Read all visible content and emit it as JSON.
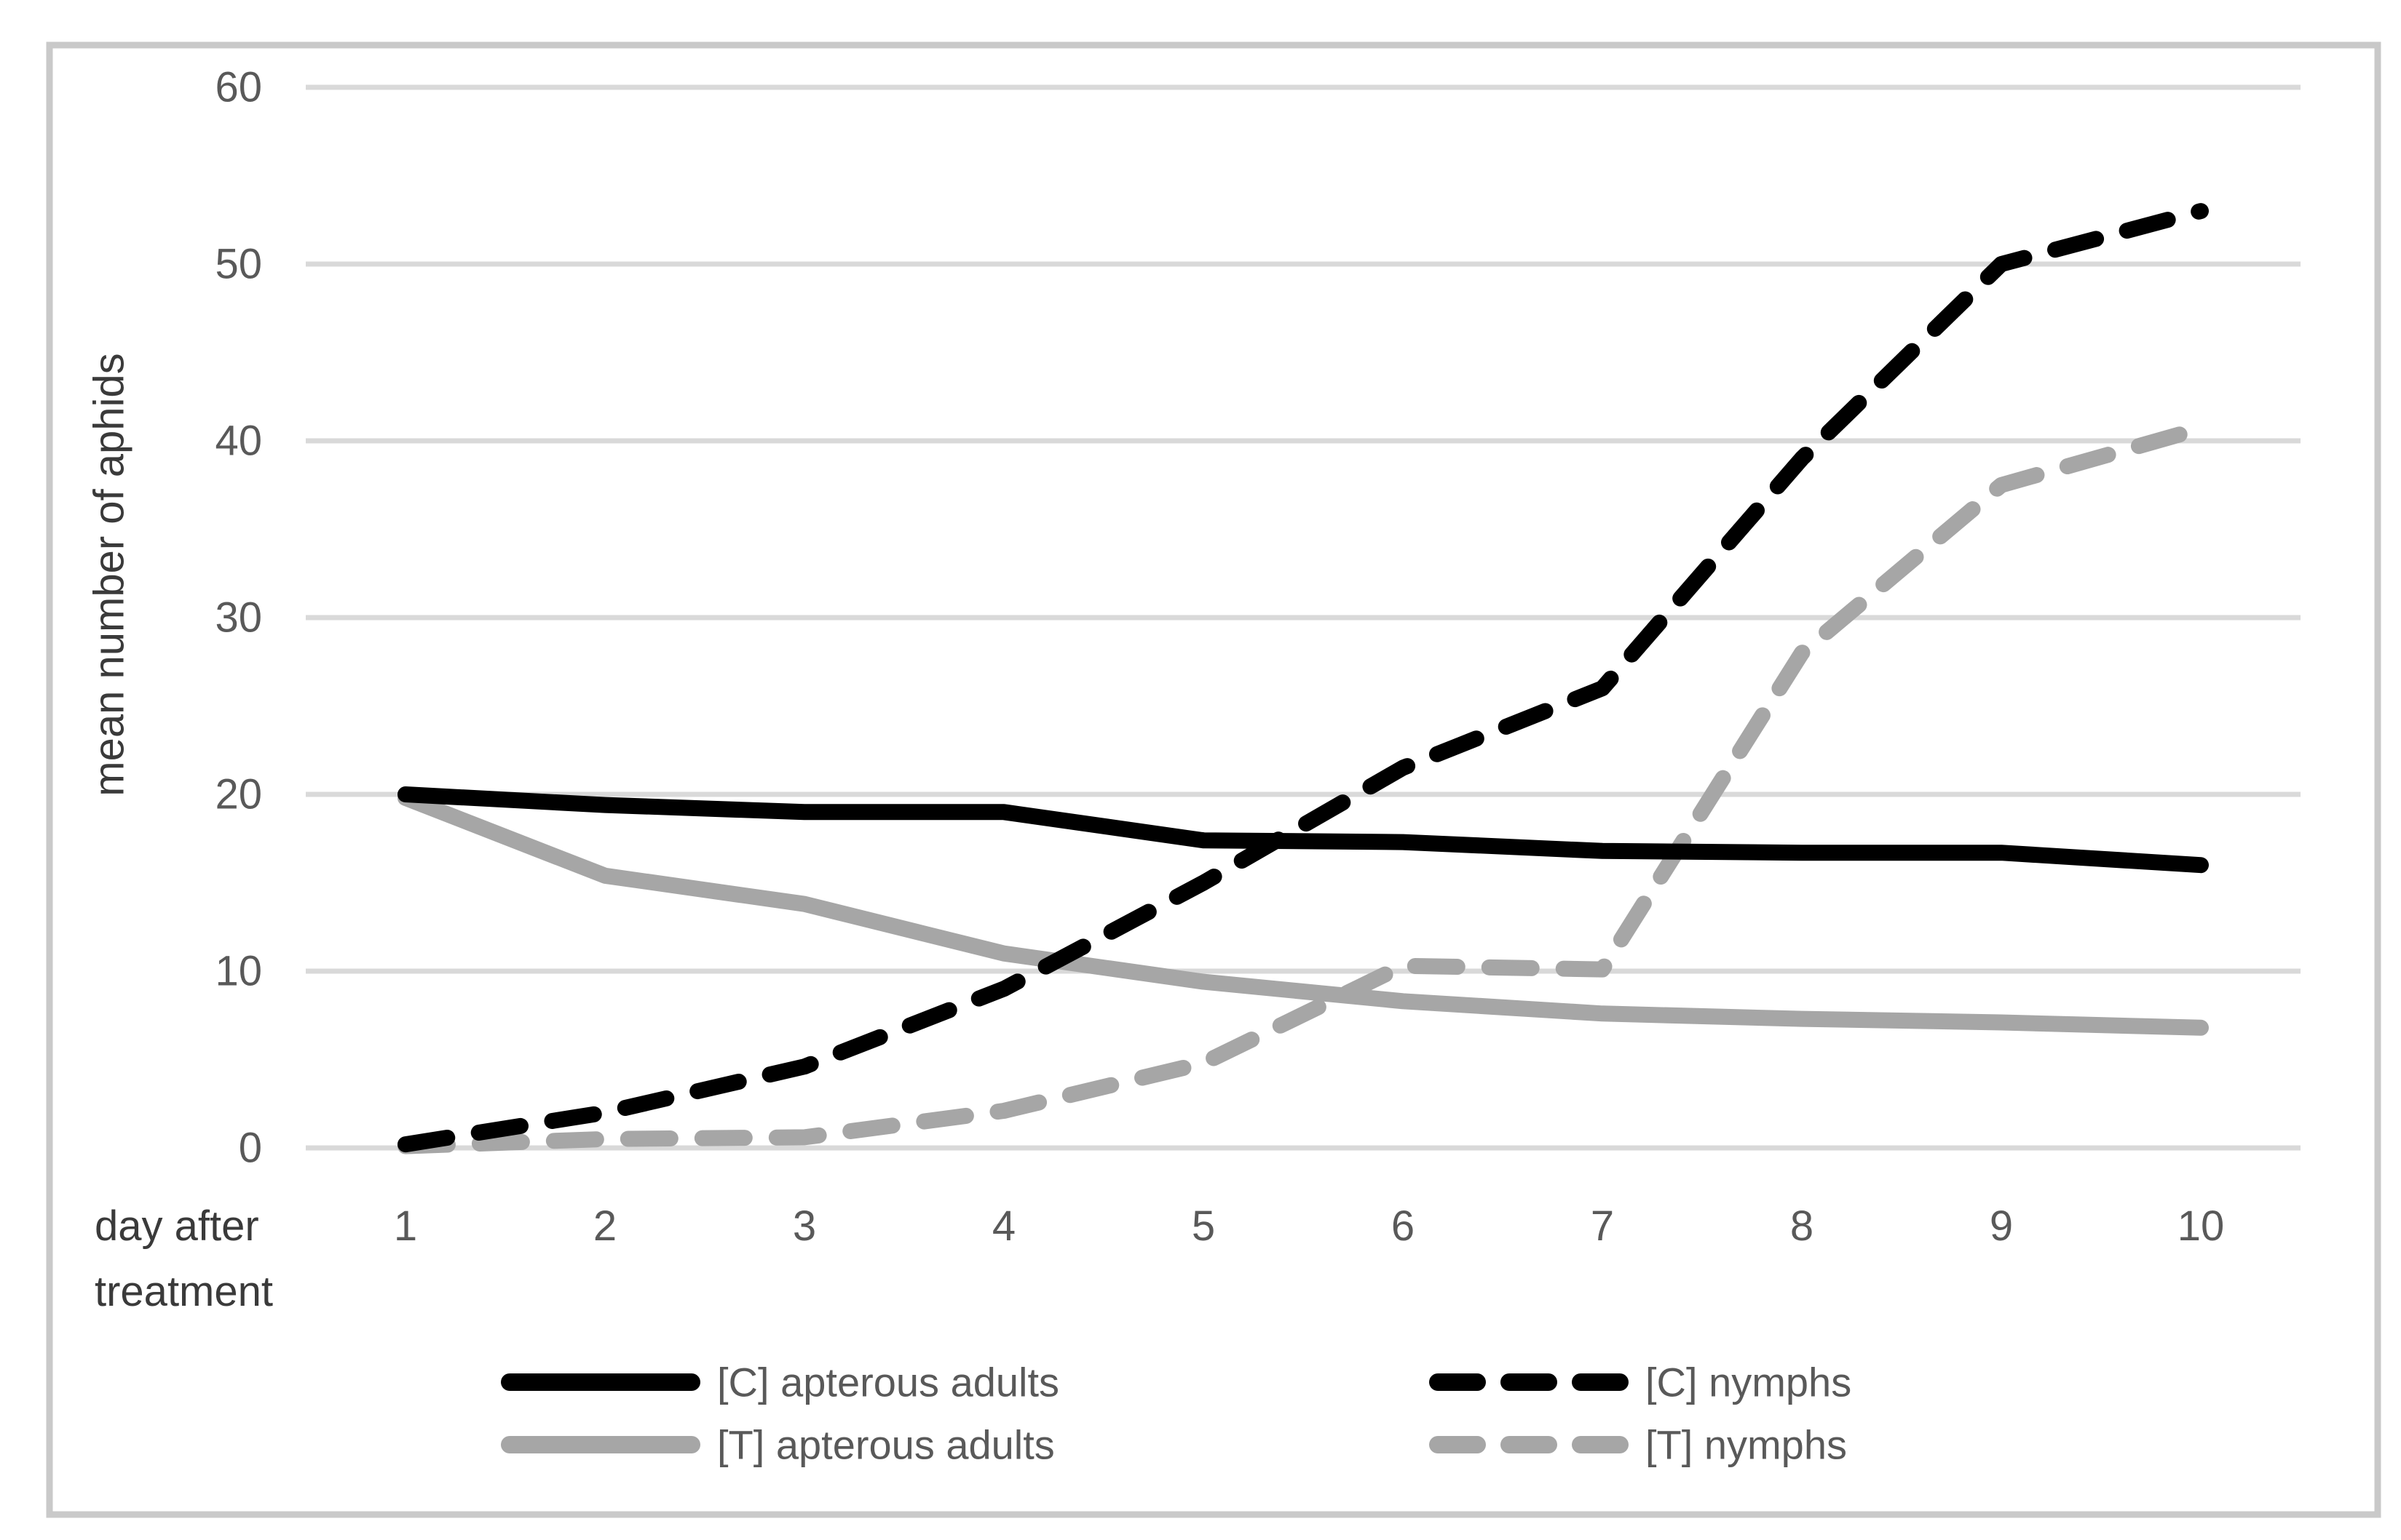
{
  "figure": {
    "background": "#ffffff",
    "border_color": "#c9c9c9"
  },
  "chart_data": {
    "type": "line",
    "title": "",
    "xlabel": "day after treatment",
    "xlabel_lines": [
      "day after",
      "treatment"
    ],
    "ylabel": "mean number of aphids",
    "x": [
      1,
      2,
      3,
      4,
      5,
      6,
      7,
      8,
      9,
      10
    ],
    "y_ticks": [
      0,
      10,
      20,
      30,
      40,
      50,
      60
    ],
    "ylim": [
      0,
      60
    ],
    "grid": "horizontal-only",
    "grid_color": "#d9d9d9",
    "tick_color": "#595959",
    "label_color": "#3a3a3a",
    "legend_position": "bottom-two-columns",
    "series": [
      {
        "name": "[C] apterous adults",
        "color": "#000000",
        "dash": "solid",
        "values": [
          20,
          19.4,
          19,
          19,
          17.4,
          17.3,
          16.8,
          16.7,
          16.7,
          16
        ]
      },
      {
        "name": "[C] nymphs",
        "color": "#000000",
        "dash": "dashed",
        "values": [
          0.2,
          2,
          4.6,
          9,
          15,
          21.5,
          26,
          39,
          50,
          53
        ]
      },
      {
        "name": "[T] apterous adults",
        "color": "#a6a6a6",
        "dash": "solid",
        "values": [
          19.8,
          15.4,
          13.8,
          11,
          9.4,
          8.3,
          7.6,
          7.3,
          7.1,
          6.8
        ]
      },
      {
        "name": "[T] nymphs",
        "color": "#a6a6a6",
        "dash": "dashed",
        "values": [
          0.1,
          0.5,
          0.6,
          2.1,
          4.8,
          10.3,
          10.1,
          28,
          37.5,
          40.7
        ]
      }
    ]
  }
}
